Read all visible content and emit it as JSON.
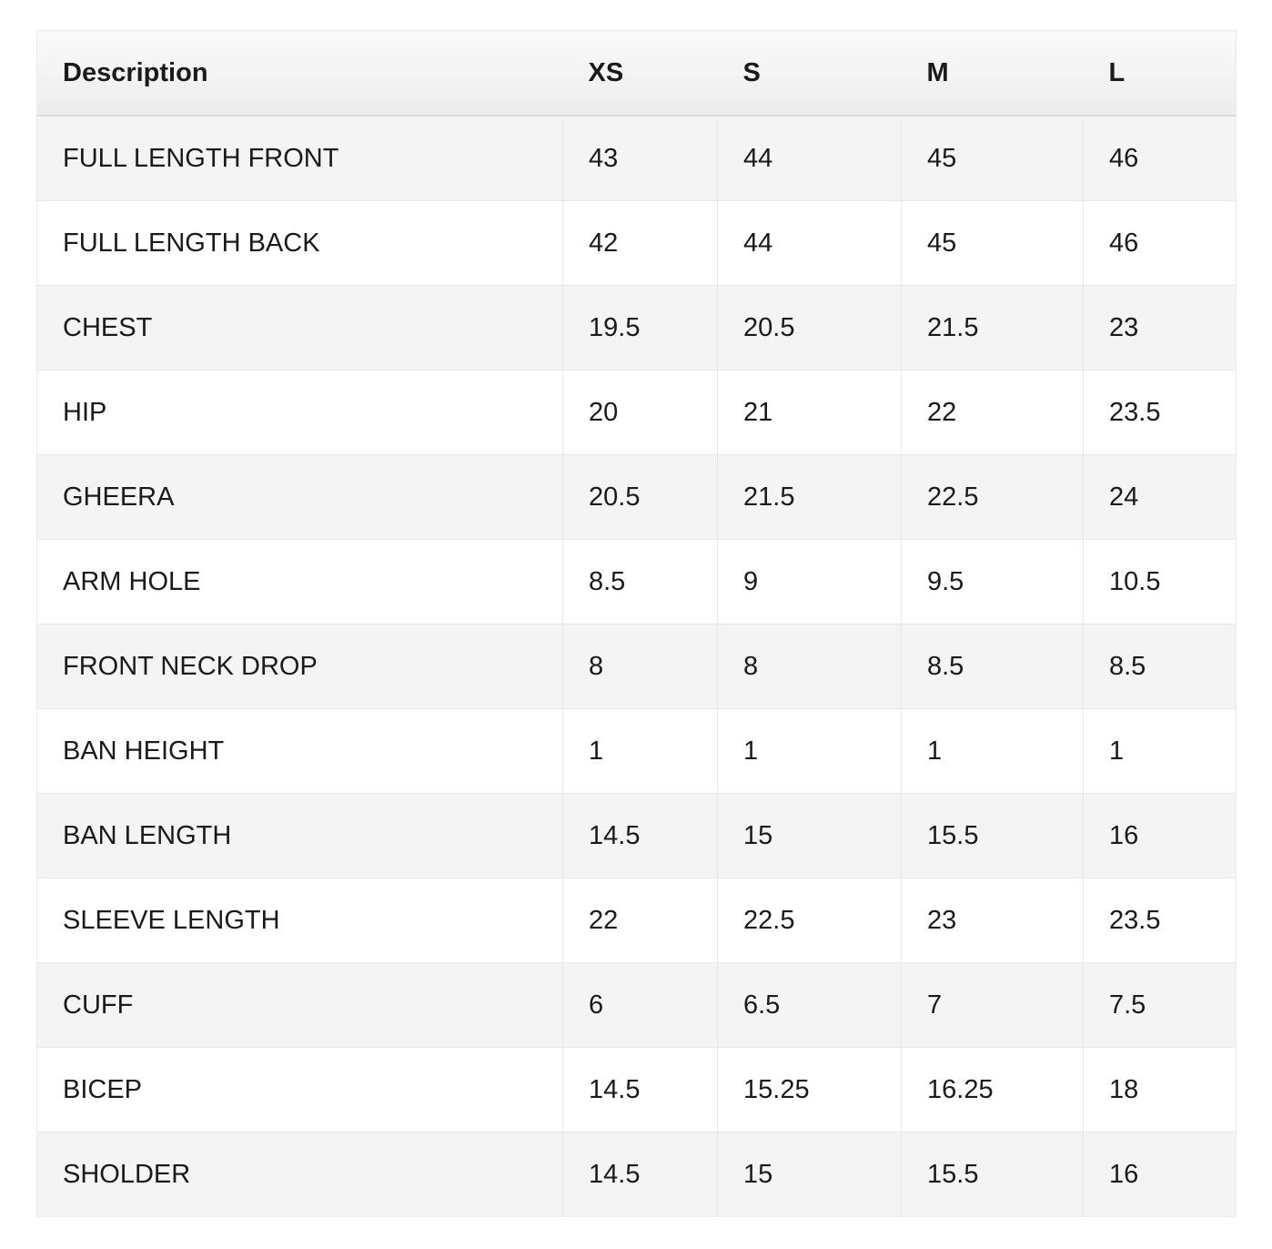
{
  "table": {
    "header": {
      "description": "Description",
      "sizes": [
        "XS",
        "S",
        "M",
        "L"
      ]
    },
    "rows": [
      {
        "description": "FULL LENGTH FRONT",
        "xs": "43",
        "s": "44",
        "m": "45",
        "l": "46"
      },
      {
        "description": "FULL LENGTH BACK",
        "xs": "42",
        "s": "44",
        "m": "45",
        "l": "46"
      },
      {
        "description": "CHEST",
        "xs": "19.5",
        "s": "20.5",
        "m": "21.5",
        "l": "23"
      },
      {
        "description": "HIP",
        "xs": "20",
        "s": "21",
        "m": "22",
        "l": "23.5"
      },
      {
        "description": "GHEERA",
        "xs": "20.5",
        "s": "21.5",
        "m": "22.5",
        "l": "24"
      },
      {
        "description": "ARM HOLE",
        "xs": "8.5",
        "s": "9",
        "m": "9.5",
        "l": "10.5"
      },
      {
        "description": "FRONT NECK DROP",
        "xs": "8",
        "s": "8",
        "m": "8.5",
        "l": "8.5"
      },
      {
        "description": "BAN HEIGHT",
        "xs": "1",
        "s": "1",
        "m": "1",
        "l": "1"
      },
      {
        "description": "BAN LENGTH",
        "xs": "14.5",
        "s": "15",
        "m": "15.5",
        "l": "16"
      },
      {
        "description": "SLEEVE LENGTH",
        "xs": "22",
        "s": "22.5",
        "m": "23",
        "l": "23.5"
      },
      {
        "description": "CUFF",
        "xs": "6",
        "s": "6.5",
        "m": "7",
        "l": "7.5"
      },
      {
        "description": "BICEP",
        "xs": "14.5",
        "s": "15.25",
        "m": "16.25",
        "l": "18"
      },
      {
        "description": "SHOLDER",
        "xs": "14.5",
        "s": "15",
        "m": "15.5",
        "l": "16"
      }
    ]
  },
  "colors": {
    "row_alt_background": "#f4f4f4",
    "row_background": "#ffffff",
    "header_gradient_top": "#fafafa",
    "header_gradient_bottom": "#ececec",
    "header_border_bottom": "#dcdcdc",
    "cell_border": "#e8e8e8",
    "text": "#1a1a1a"
  }
}
